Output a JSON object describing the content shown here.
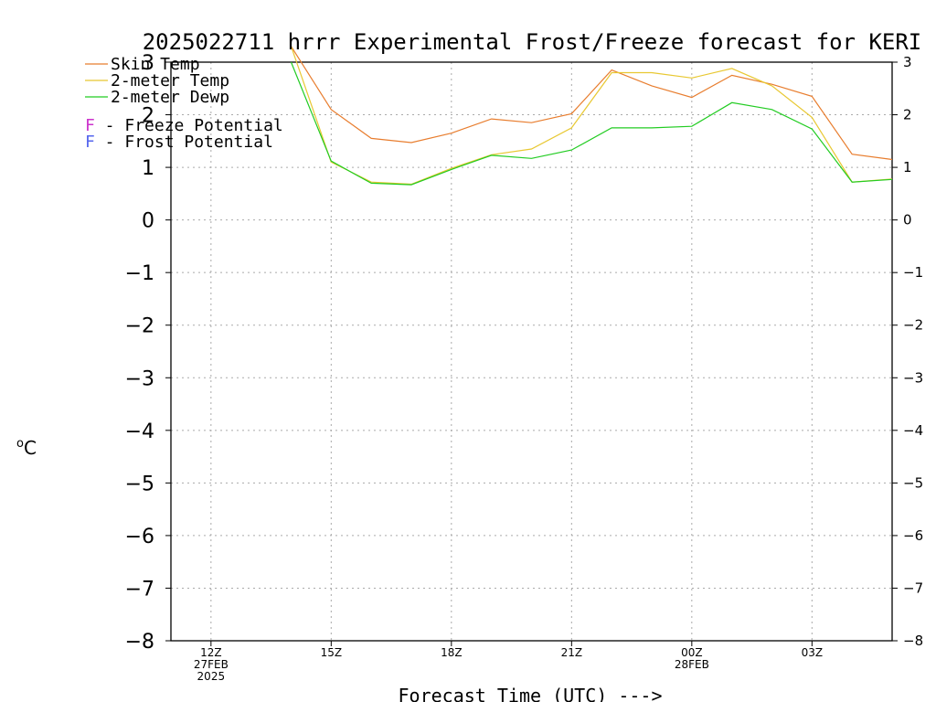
{
  "chart_data": {
    "type": "line",
    "title": "2025022711 hrrr Experimental Frost/Freeze forecast for KERI",
    "xlabel": "Forecast Time (UTC) --->",
    "ylabel_unit_symbol": "o",
    "ylabel_unit": "C",
    "ylim": [
      -8,
      3
    ],
    "yticks": [
      3,
      2,
      1,
      0,
      -1,
      -2,
      -3,
      -4,
      -5,
      -6,
      -7,
      -8
    ],
    "xlim": [
      11,
      29
    ],
    "grid": true,
    "legend_placement": "top-left",
    "x_ticks": [
      {
        "x": 12,
        "lines": [
          "12Z",
          "27FEB",
          "2025"
        ]
      },
      {
        "x": 15,
        "lines": [
          "15Z"
        ]
      },
      {
        "x": 18,
        "lines": [
          "18Z"
        ]
      },
      {
        "x": 21,
        "lines": [
          "21Z"
        ]
      },
      {
        "x": 24,
        "lines": [
          "00Z",
          "28FEB"
        ]
      },
      {
        "x": 27,
        "lines": [
          "03Z"
        ]
      }
    ],
    "x": [
      11,
      12,
      13,
      14,
      15,
      16,
      17,
      18,
      19,
      20,
      21,
      22,
      23,
      24,
      25,
      26,
      27,
      28,
      29
    ],
    "series": [
      {
        "name": "Skin Temp",
        "color": "#e87d2e",
        "values": [
          null,
          null,
          null,
          3.3,
          2.1,
          1.55,
          1.47,
          1.65,
          1.92,
          1.85,
          2.02,
          2.85,
          2.55,
          2.33,
          2.75,
          2.58,
          2.35,
          1.25,
          1.15
        ]
      },
      {
        "name": "2-meter Temp",
        "color": "#e8c832",
        "values": [
          null,
          null,
          null,
          3.3,
          1.1,
          0.72,
          0.68,
          0.98,
          1.24,
          1.35,
          1.75,
          2.8,
          2.8,
          2.7,
          2.88,
          2.55,
          1.95,
          0.72,
          0.78
        ]
      },
      {
        "name": "2-meter Dewp",
        "color": "#22cc22",
        "values": [
          null,
          null,
          null,
          3.0,
          1.12,
          0.7,
          0.67,
          0.96,
          1.23,
          1.17,
          1.33,
          1.75,
          1.75,
          1.78,
          2.23,
          2.1,
          1.73,
          0.72,
          0.77
        ]
      }
    ],
    "potential_legend": [
      {
        "letter": "F",
        "text": " - Freeze Potential",
        "color": "#cc33cc"
      },
      {
        "letter": "F",
        "text": " - Frost Potential",
        "color": "#5566ee"
      }
    ]
  }
}
